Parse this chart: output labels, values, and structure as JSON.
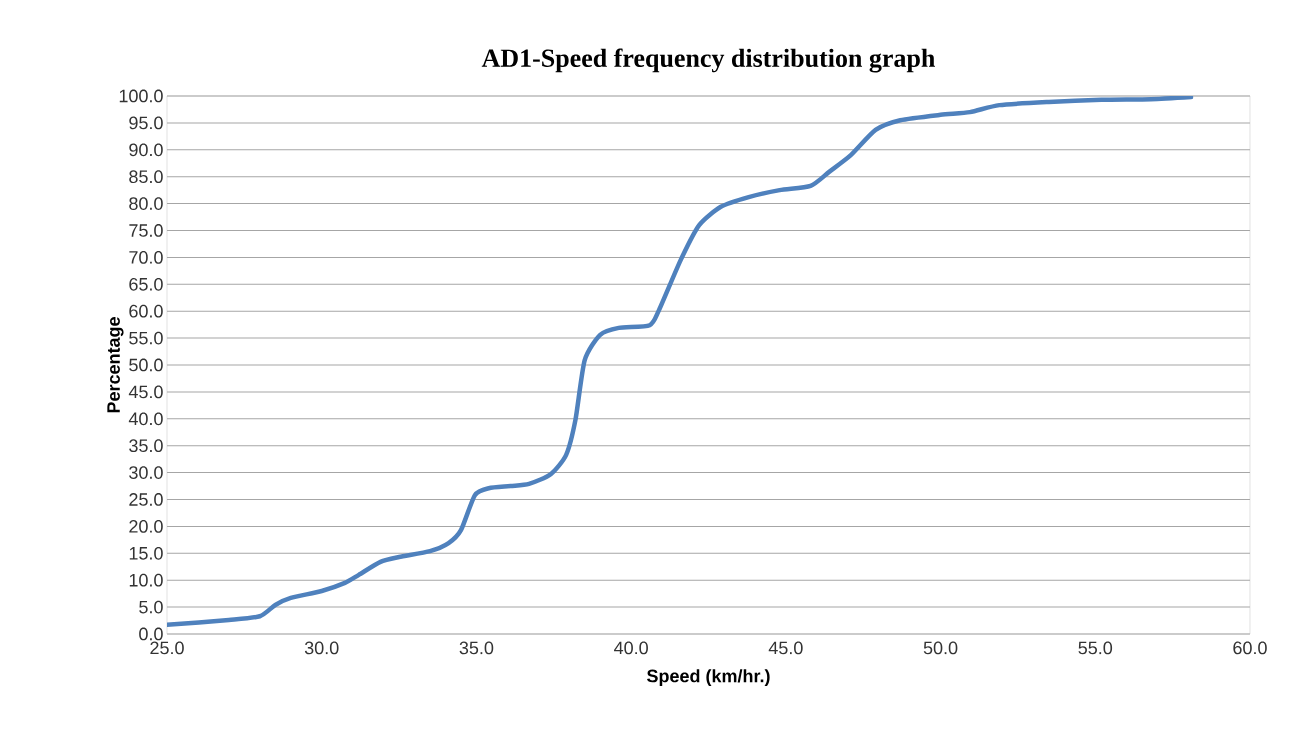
{
  "chart_data": {
    "type": "line",
    "title": "AD1-Speed frequency distribution graph",
    "xlabel": "Speed (km/hr.)",
    "ylabel": "Percentage",
    "x": [
      25.0,
      27.0,
      28.0,
      28.5,
      29.0,
      30.0,
      30.75,
      31.2,
      31.9,
      32.5,
      33.5,
      34.1,
      34.5,
      34.95,
      35.4,
      36.1,
      36.7,
      37.4,
      37.9,
      38.2,
      38.5,
      39.0,
      39.6,
      40.6,
      40.9,
      41.6,
      42.2,
      42.9,
      43.8,
      44.8,
      45.8,
      46.4,
      47.1,
      47.9,
      48.7,
      50.0,
      50.95,
      51.9,
      53.5,
      55.2,
      56.8,
      58.1
    ],
    "series": [
      {
        "color": "#4f81bd",
        "values": [
          1.7,
          2.6,
          3.3,
          5.4,
          6.7,
          8.0,
          9.5,
          11.0,
          13.4,
          14.3,
          15.4,
          16.9,
          19.3,
          25.8,
          27.1,
          27.5,
          27.9,
          29.7,
          33.3,
          39.8,
          50.9,
          55.6,
          56.9,
          57.4,
          60.2,
          69.5,
          76.0,
          79.4,
          81.2,
          82.5,
          83.3,
          85.9,
          89.0,
          93.7,
          95.5,
          96.5,
          97.0,
          98.3,
          98.9,
          99.3,
          99.4,
          99.8
        ]
      }
    ],
    "xlim": [
      25,
      60
    ],
    "ylim": [
      0,
      100
    ],
    "xticks": [
      {
        "value": 25,
        "label": "25.0"
      },
      {
        "value": 30,
        "label": "30.0"
      },
      {
        "value": 35,
        "label": "35.0"
      },
      {
        "value": 40,
        "label": "40.0"
      },
      {
        "value": 45,
        "label": "45.0"
      },
      {
        "value": 50,
        "label": "50.0"
      },
      {
        "value": 55,
        "label": "55.0"
      },
      {
        "value": 60,
        "label": "60.0"
      }
    ],
    "yticks": [
      {
        "value": 0,
        "label": "0.0"
      },
      {
        "value": 5,
        "label": "5.0"
      },
      {
        "value": 10,
        "label": "10.0"
      },
      {
        "value": 15,
        "label": "15.0"
      },
      {
        "value": 20,
        "label": "20.0"
      },
      {
        "value": 25,
        "label": "25.0"
      },
      {
        "value": 30,
        "label": "30.0"
      },
      {
        "value": 35,
        "label": "35.0"
      },
      {
        "value": 40,
        "label": "40.0"
      },
      {
        "value": 45,
        "label": "45.0"
      },
      {
        "value": 50,
        "label": "50.0"
      },
      {
        "value": 55,
        "label": "55.0"
      },
      {
        "value": 60,
        "label": "60.0"
      },
      {
        "value": 65,
        "label": "65.0"
      },
      {
        "value": 70,
        "label": "70.0"
      },
      {
        "value": 75,
        "label": "75.0"
      },
      {
        "value": 80,
        "label": "80.0"
      },
      {
        "value": 85,
        "label": "85.0"
      },
      {
        "value": 90,
        "label": "90.0"
      },
      {
        "value": 95,
        "label": "95.0"
      },
      {
        "value": 100,
        "label": "100.0"
      }
    ],
    "grid": "y",
    "marker": "none",
    "line_style": "solid"
  }
}
